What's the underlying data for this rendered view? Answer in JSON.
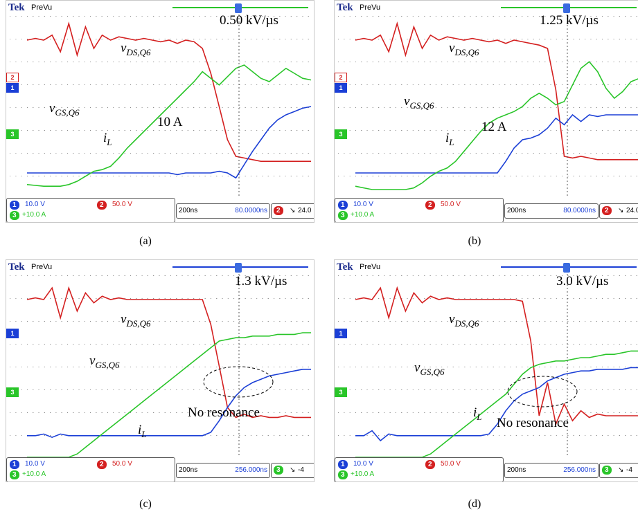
{
  "colors": {
    "ch1": "#1b3fd6",
    "ch2": "#d42020",
    "ch3": "#29c529",
    "grid": "#8a8a8a"
  },
  "chart_data": [
    {
      "type": "line",
      "panel": "(a)",
      "header": {
        "brand": "Tek",
        "mode": "PreVu"
      },
      "series": [
        {
          "name": "v_DS,Q6",
          "channel": "2",
          "y": [
            0.95,
            0.96,
            0.95,
            0.98,
            0.88,
            1.05,
            0.86,
            1.03,
            0.9,
            0.98,
            0.95,
            0.97,
            0.96,
            0.95,
            0.96,
            0.95,
            0.94,
            0.95,
            0.93,
            0.95,
            0.94,
            0.9,
            0.75,
            0.55,
            0.35,
            0.25,
            0.24,
            0.23,
            0.22,
            0.22,
            0.22,
            0.22,
            0.22,
            0.22,
            0.22
          ]
        },
        {
          "name": "v_GS,Q6",
          "channel": "1",
          "y": [
            0.15,
            0.15,
            0.15,
            0.15,
            0.15,
            0.15,
            0.15,
            0.15,
            0.15,
            0.15,
            0.15,
            0.15,
            0.15,
            0.15,
            0.15,
            0.15,
            0.15,
            0.15,
            0.14,
            0.15,
            0.15,
            0.15,
            0.15,
            0.16,
            0.15,
            0.12,
            0.2,
            0.28,
            0.35,
            0.42,
            0.47,
            0.5,
            0.52,
            0.54,
            0.55
          ]
        },
        {
          "name": "i_L",
          "channel": "3",
          "y": [
            0.08,
            0.075,
            0.07,
            0.07,
            0.07,
            0.08,
            0.1,
            0.13,
            0.16,
            0.17,
            0.19,
            0.24,
            0.3,
            0.35,
            0.4,
            0.45,
            0.5,
            0.55,
            0.6,
            0.65,
            0.7,
            0.76,
            0.72,
            0.68,
            0.73,
            0.78,
            0.8,
            0.76,
            0.72,
            0.7,
            0.74,
            0.78,
            0.75,
            0.72,
            0.71
          ]
        }
      ],
      "annotations": {
        "slew": "0.50 kV/µs",
        "vds": "vDS,Q6",
        "vgs": "vGS,Q6",
        "il": "iL",
        "delta": "10 A"
      },
      "status": {
        "ch1": "10.0 V",
        "ch2": "50.0 V",
        "ch3": "+10.0 A",
        "time_div": "200ns",
        "delay": "80.0000ns",
        "trig": "24.0"
      }
    },
    {
      "type": "line",
      "panel": "(b)",
      "header": {
        "brand": "Tek",
        "mode": "PreVu"
      },
      "series": [
        {
          "name": "v_DS,Q6",
          "channel": "2",
          "y": [
            0.95,
            0.96,
            0.95,
            0.98,
            0.88,
            1.05,
            0.86,
            1.03,
            0.9,
            0.98,
            0.95,
            0.97,
            0.96,
            0.95,
            0.96,
            0.95,
            0.94,
            0.95,
            0.93,
            0.95,
            0.94,
            0.93,
            0.92,
            0.9,
            0.65,
            0.25,
            0.24,
            0.25,
            0.24,
            0.23,
            0.23,
            0.23,
            0.23,
            0.23,
            0.23
          ]
        },
        {
          "name": "v_GS,Q6",
          "channel": "1",
          "y": [
            0.15,
            0.15,
            0.15,
            0.15,
            0.15,
            0.15,
            0.15,
            0.15,
            0.15,
            0.15,
            0.15,
            0.15,
            0.15,
            0.15,
            0.15,
            0.15,
            0.15,
            0.15,
            0.22,
            0.3,
            0.35,
            0.36,
            0.38,
            0.42,
            0.48,
            0.44,
            0.5,
            0.46,
            0.5,
            0.49,
            0.5,
            0.5,
            0.5,
            0.5,
            0.5
          ]
        },
        {
          "name": "i_L",
          "channel": "3",
          "y": [
            0.07,
            0.06,
            0.05,
            0.05,
            0.05,
            0.05,
            0.05,
            0.06,
            0.09,
            0.13,
            0.16,
            0.18,
            0.22,
            0.28,
            0.34,
            0.4,
            0.45,
            0.48,
            0.5,
            0.52,
            0.55,
            0.6,
            0.63,
            0.6,
            0.56,
            0.58,
            0.68,
            0.78,
            0.82,
            0.76,
            0.66,
            0.6,
            0.64,
            0.7,
            0.72
          ]
        }
      ],
      "annotations": {
        "slew": "1.25 kV/µs",
        "vds": "vDS,Q6",
        "vgs": "vGS,Q6",
        "il": "iL",
        "delta": "12 A"
      },
      "status": {
        "ch1": "10.0 V",
        "ch2": "50.0 V",
        "ch3": "+10.0 A",
        "time_div": "200ns",
        "delay": "80.0000ns",
        "trig": "24.0"
      }
    },
    {
      "type": "line",
      "panel": "(c)",
      "header": {
        "brand": "Tek",
        "mode": "PreVu"
      },
      "series": [
        {
          "name": "v_DS,Q6",
          "channel": "2",
          "y": [
            0.95,
            0.96,
            0.95,
            1.02,
            0.84,
            1.02,
            0.88,
            0.99,
            0.93,
            0.97,
            0.95,
            0.96,
            0.95,
            0.95,
            0.95,
            0.95,
            0.95,
            0.95,
            0.95,
            0.95,
            0.95,
            0.95,
            0.8,
            0.55,
            0.3,
            0.24,
            0.26,
            0.24,
            0.25,
            0.24,
            0.24,
            0.25,
            0.24,
            0.24,
            0.24
          ]
        },
        {
          "name": "v_GS,Q6",
          "channel": "1",
          "y": [
            0.13,
            0.13,
            0.14,
            0.12,
            0.14,
            0.13,
            0.13,
            0.13,
            0.13,
            0.13,
            0.13,
            0.13,
            0.13,
            0.13,
            0.13,
            0.13,
            0.13,
            0.13,
            0.13,
            0.13,
            0.13,
            0.13,
            0.15,
            0.22,
            0.3,
            0.37,
            0.42,
            0.45,
            0.47,
            0.49,
            0.5,
            0.51,
            0.52,
            0.53,
            0.53
          ]
        },
        {
          "name": "i_L",
          "channel": "3",
          "y": [
            0.0,
            0.0,
            0.0,
            0.0,
            0.0,
            0.0,
            0.02,
            0.06,
            0.1,
            0.14,
            0.18,
            0.22,
            0.26,
            0.3,
            0.34,
            0.38,
            0.42,
            0.46,
            0.5,
            0.54,
            0.58,
            0.62,
            0.66,
            0.7,
            0.71,
            0.72,
            0.72,
            0.73,
            0.73,
            0.73,
            0.74,
            0.74,
            0.74,
            0.75,
            0.75
          ]
        }
      ],
      "annotations": {
        "slew": "1.3 kV/µs",
        "vds": "vDS,Q6",
        "vgs": "vGS,Q6",
        "il": "iL",
        "note": "No resonance"
      },
      "status": {
        "ch1": "10.0 V",
        "ch2": "50.0 V",
        "ch3": "+10.0 A",
        "time_div": "200ns",
        "delay": "256.000ns",
        "trig": "-4"
      }
    },
    {
      "type": "line",
      "panel": "(d)",
      "header": {
        "brand": "Tek",
        "mode": "PreVu"
      },
      "series": [
        {
          "name": "v_DS,Q6",
          "channel": "2",
          "y": [
            0.95,
            0.96,
            0.95,
            1.02,
            0.84,
            1.02,
            0.88,
            0.99,
            0.93,
            0.97,
            0.95,
            0.96,
            0.95,
            0.95,
            0.95,
            0.95,
            0.95,
            0.95,
            0.95,
            0.95,
            0.94,
            0.7,
            0.25,
            0.45,
            0.2,
            0.32,
            0.22,
            0.28,
            0.24,
            0.26,
            0.25,
            0.25,
            0.25,
            0.25,
            0.25
          ]
        },
        {
          "name": "v_GS,Q6",
          "channel": "1",
          "y": [
            0.13,
            0.13,
            0.16,
            0.1,
            0.14,
            0.13,
            0.13,
            0.13,
            0.13,
            0.13,
            0.13,
            0.13,
            0.13,
            0.13,
            0.13,
            0.13,
            0.14,
            0.2,
            0.28,
            0.34,
            0.38,
            0.4,
            0.42,
            0.46,
            0.48,
            0.5,
            0.51,
            0.52,
            0.52,
            0.53,
            0.53,
            0.53,
            0.53,
            0.54,
            0.54
          ]
        },
        {
          "name": "i_L",
          "channel": "3",
          "y": [
            0.0,
            0.0,
            0.0,
            0.0,
            0.0,
            0.0,
            0.0,
            0.0,
            0.0,
            0.02,
            0.06,
            0.1,
            0.14,
            0.18,
            0.22,
            0.26,
            0.3,
            0.34,
            0.38,
            0.44,
            0.5,
            0.54,
            0.56,
            0.57,
            0.58,
            0.58,
            0.59,
            0.6,
            0.6,
            0.61,
            0.62,
            0.62,
            0.63,
            0.64,
            0.64
          ]
        }
      ],
      "annotations": {
        "slew": "3.0 kV/µs",
        "vds": "vDS,Q6",
        "vgs": "vGS,Q6",
        "il": "iL",
        "note": "No resonance"
      },
      "status": {
        "ch1": "10.0 V",
        "ch2": "50.0 V",
        "ch3": "+10.0 A",
        "time_div": "200ns",
        "delay": "256.000ns",
        "trig": "-4"
      }
    }
  ]
}
